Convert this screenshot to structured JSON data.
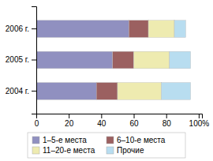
{
  "chart_data": {
    "type": "bar",
    "orientation": "horizontal",
    "stacked": true,
    "categories": [
      "2004 г.",
      "2005 г.",
      "2006 г."
    ],
    "series": [
      {
        "name": "1–5-е места",
        "color": "#9090c0",
        "values": [
          37,
          47,
          57
        ]
      },
      {
        "name": "6–10-е места",
        "color": "#9b6060",
        "values": [
          13,
          13,
          12
        ]
      },
      {
        "name": "11–20-е места",
        "color": "#eeebb0",
        "values": [
          27,
          22,
          16
        ]
      },
      {
        "name": "Прочие",
        "color": "#b8ddf0",
        "values": [
          18,
          13,
          7
        ]
      }
    ],
    "xlim": [
      0,
      102
    ],
    "xticks": [
      0,
      20,
      40,
      60,
      80,
      {
        "value": 100,
        "label": "100%"
      }
    ],
    "grid": false,
    "legend": "bottom"
  }
}
